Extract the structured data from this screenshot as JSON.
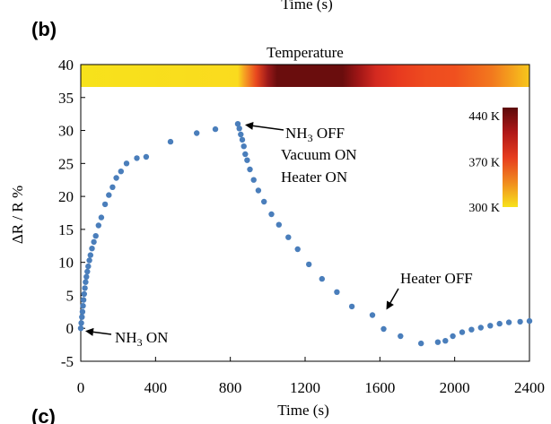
{
  "top_axis_title_fragment": "Time (s)",
  "panel_b_label": "(b)",
  "panel_c_label": "(c)",
  "chart_data": {
    "type": "scatter",
    "xlabel": "Time (s)",
    "ylabel": "ΔR / R %",
    "xlim": [
      0,
      2400
    ],
    "ylim": [
      -5,
      40
    ],
    "x_ticks": [
      "0",
      "400",
      "800",
      "1200",
      "1600",
      "2000",
      "2400"
    ],
    "y_ticks": [
      "-5",
      "0",
      "5",
      "10",
      "15",
      "20",
      "25",
      "30",
      "35",
      "40"
    ],
    "grid": false,
    "marker_color": "#4a7ebb",
    "series": [
      {
        "x": [
          0,
          3,
          6,
          9,
          12,
          15,
          18,
          22,
          26,
          30,
          35,
          40,
          46,
          52,
          60,
          70,
          80,
          95,
          110,
          130,
          150,
          170,
          190,
          215,
          245,
          300,
          350,
          480,
          620,
          720,
          840,
          848,
          856,
          864,
          872,
          880,
          890,
          905,
          925,
          950,
          980,
          1020,
          1060,
          1110,
          1160,
          1220,
          1290,
          1370,
          1450,
          1560,
          1620,
          1710,
          1820,
          1910,
          1950,
          1990,
          2040,
          2090,
          2140,
          2190,
          2240,
          2290,
          2350,
          2400
        ],
        "y": [
          0,
          0.8,
          1.7,
          2.5,
          3.4,
          4.3,
          5.2,
          6.1,
          7.0,
          7.8,
          8.6,
          9.4,
          10.3,
          11.1,
          12.1,
          13.1,
          14.0,
          15.6,
          16.8,
          18.8,
          20.2,
          21.4,
          22.8,
          23.8,
          25.0,
          25.8,
          26.0,
          28.3,
          29.6,
          30.2,
          31.0,
          30.3,
          29.4,
          28.6,
          27.6,
          26.4,
          25.5,
          24.1,
          22.5,
          20.9,
          19.2,
          17.3,
          15.7,
          13.8,
          12.0,
          9.7,
          7.5,
          5.5,
          3.3,
          2.0,
          -0.1,
          -1.2,
          -2.3,
          -2.1,
          -1.9,
          -1.2,
          -0.6,
          -0.2,
          0.1,
          0.4,
          0.7,
          0.9,
          1.0,
          1.1
        ]
      }
    ],
    "annotations": [
      {
        "text": "NH3 OFF",
        "base": "NH",
        "sub": "3",
        "rest": " OFF",
        "target": [
          840,
          31
        ]
      },
      {
        "text": "Vacuum ON"
      },
      {
        "text": "Heater ON"
      },
      {
        "text": "Heater OFF",
        "target": [
          1620,
          2
        ]
      },
      {
        "text": "NH3 ON",
        "base": "NH",
        "sub": "3",
        "rest": " ON",
        "target": [
          0,
          0
        ]
      }
    ],
    "temperature_bar": {
      "title": "Temperature",
      "stops": [
        {
          "time": 0,
          "color": "#f7e21b"
        },
        {
          "time": 840,
          "color": "#fadb1e"
        },
        {
          "time": 880,
          "color": "#f59a23"
        },
        {
          "time": 940,
          "color": "#e8461e"
        },
        {
          "time": 1000,
          "color": "#9e1a1a"
        },
        {
          "time": 1050,
          "color": "#6a0d0d"
        },
        {
          "time": 1400,
          "color": "#6a0d0d"
        },
        {
          "time": 1480,
          "color": "#9c1515"
        },
        {
          "time": 1580,
          "color": "#d42a20"
        },
        {
          "time": 1700,
          "color": "#e83a1f"
        },
        {
          "time": 1850,
          "color": "#ee4c1f"
        },
        {
          "time": 2000,
          "color": "#f0501f"
        },
        {
          "time": 2200,
          "color": "#f2791e"
        },
        {
          "time": 2400,
          "color": "#f7c71c"
        }
      ]
    },
    "colorbar": {
      "labels": [
        "440 K",
        "370 K",
        "300 K"
      ],
      "colors": [
        "#5c0a0a",
        "#b01818",
        "#e63c1e",
        "#f08a1f",
        "#f7e21b"
      ]
    }
  }
}
